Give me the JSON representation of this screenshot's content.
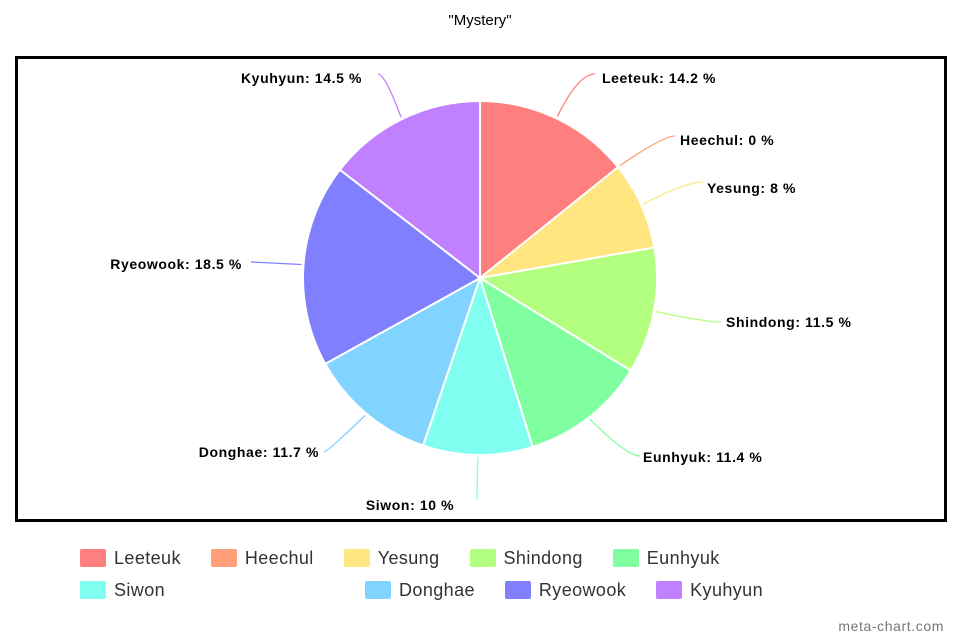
{
  "chart_data": {
    "type": "pie",
    "title": "\"Mystery\"",
    "categories": [
      "Leeteuk",
      "Heechul",
      "Yesung",
      "Shindong",
      "Eunhyuk",
      "Siwon",
      "Donghae",
      "Ryeowook",
      "Kyuhyun"
    ],
    "values": [
      14.2,
      0,
      8,
      11.5,
      11.4,
      10,
      11.7,
      18.5,
      14.5
    ],
    "unit": "%",
    "labels": [
      "Leeteuk: 14.2 %",
      "Heechul: 0 %",
      "Yesung: 8 %",
      "Shindong: 11.5 %",
      "Eunhyuk: 11.4 %",
      "Siwon: 10 %",
      "Donghae: 11.7 %",
      "Ryeowook: 18.5 %",
      "Kyuhyun: 14.5 %"
    ],
    "colors": [
      "#ff7f7f",
      "#ffa07a",
      "#ffe680",
      "#b3ff80",
      "#80ffa0",
      "#80fff0",
      "#80d4ff",
      "#8080ff",
      "#c080ff"
    ],
    "legend_position": "bottom"
  },
  "watermark": "meta-chart.com"
}
